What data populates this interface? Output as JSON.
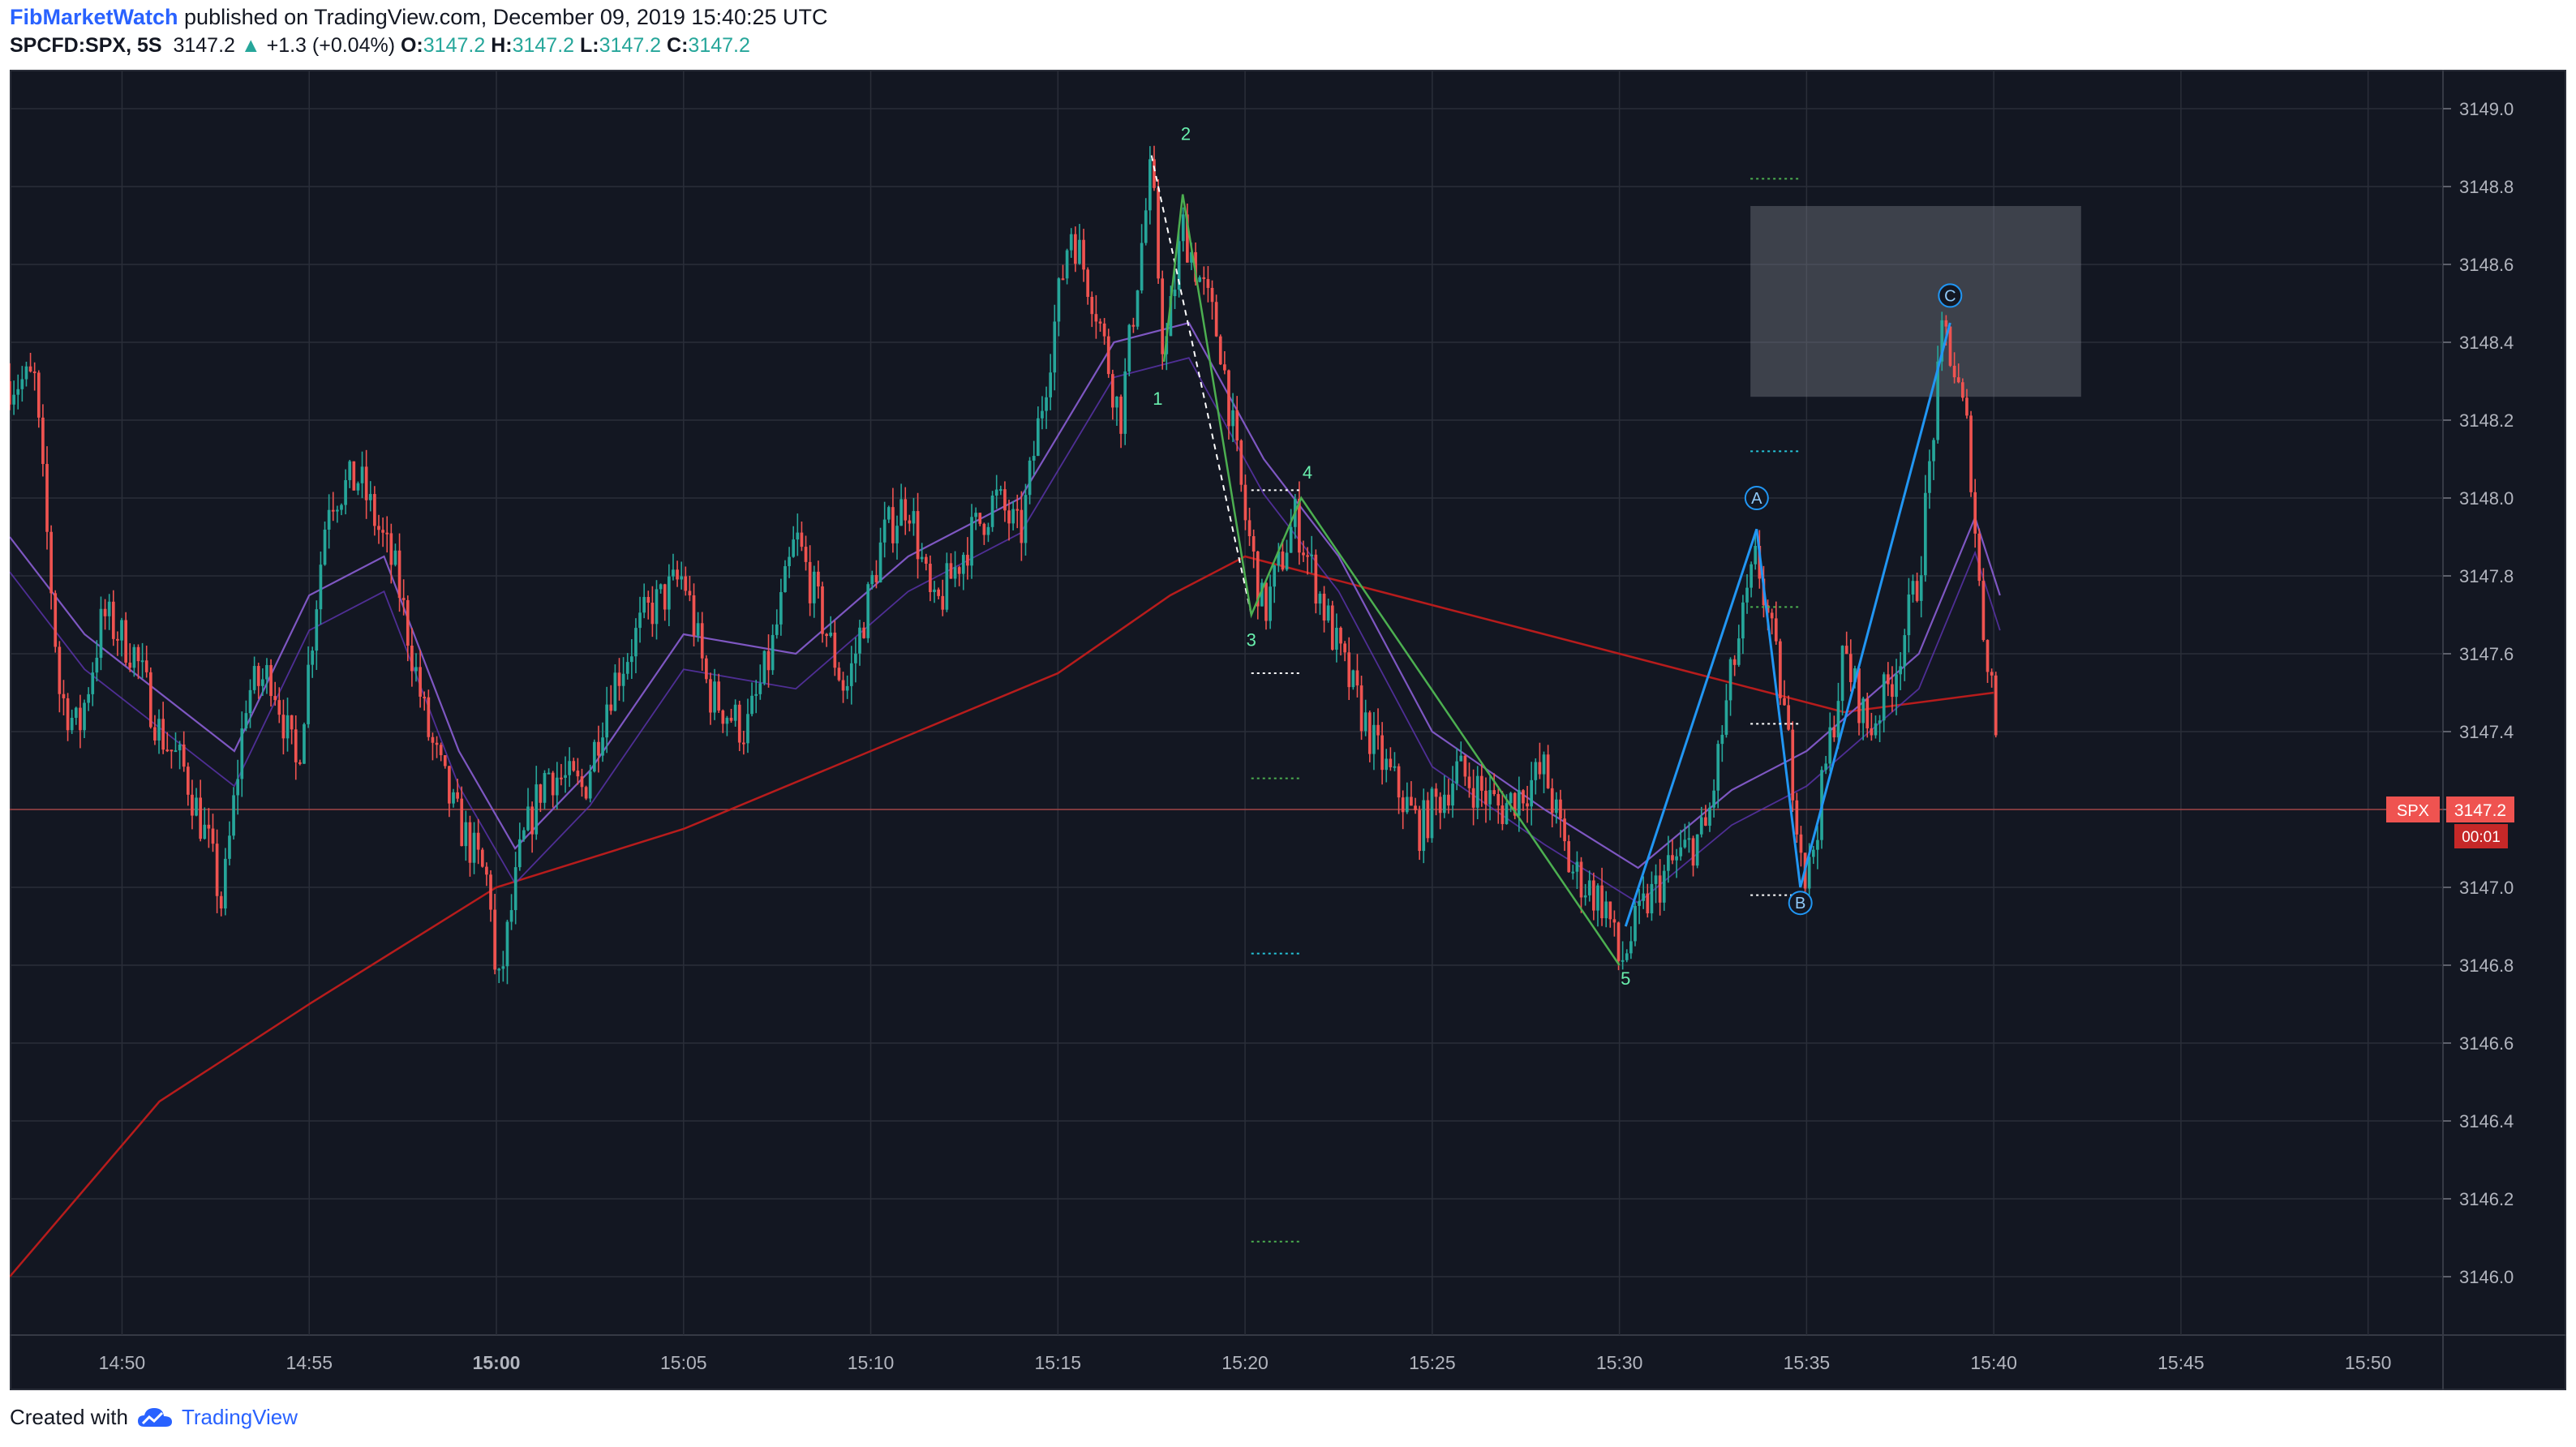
{
  "header": {
    "author": "FibMarketWatch",
    "published_text": " published on TradingView.com, December 09, 2019 15:40:25 UTC",
    "symbol": "SPCFD:SPX, 5S",
    "last": "3147.2",
    "change": "+1.3 (+0.04%)",
    "o_label": "O:",
    "o_value": "3147.2",
    "h_label": "H:",
    "h_value": "3147.2",
    "l_label": "L:",
    "l_value": "3147.2",
    "c_label": "C:",
    "c_value": "3147.2"
  },
  "footer": {
    "created_with": "Created with",
    "brand": "TradingView"
  },
  "price_tag": {
    "symbol": "SPX",
    "price": "3147.2",
    "countdown": "00:01"
  },
  "colors": {
    "background": "#131722",
    "grid": "#2a2e39",
    "up": "#26a69a",
    "down": "#ef5350",
    "ma_long": "#b71c1c",
    "ma_fast": "#7e57c2",
    "wave_green": "#4caf50",
    "wave_blue": "#2196f3",
    "axis_text": "#b2b5be"
  },
  "wave_labels": {
    "w1": "1",
    "w2": "2",
    "w3": "3",
    "w4": "4",
    "w5": "5",
    "wa": "A",
    "wb": "B",
    "wc": "C"
  },
  "chart_data": {
    "type": "candlestick",
    "interval": "5S",
    "x_ticks": [
      "14:50",
      "14:55",
      "15:00",
      "15:05",
      "15:10",
      "15:15",
      "15:20",
      "15:25",
      "15:30",
      "15:35",
      "15:40",
      "15:45",
      "15:50"
    ],
    "y_ticks": [
      "3149.0",
      "3148.8",
      "3148.6",
      "3148.4",
      "3148.2",
      "3148.0",
      "3147.8",
      "3147.6",
      "3147.4",
      "3147.2",
      "3147.0",
      "3146.8",
      "3146.6",
      "3146.4",
      "3146.2",
      "3146.0"
    ],
    "xlim": [
      "14:47",
      "15:52"
    ],
    "ylim": [
      3145.85,
      3149.1
    ],
    "last_price": 3147.2,
    "price_path": [
      [
        "14:47:00",
        3148.3
      ],
      [
        "14:47:40",
        3148.3
      ],
      [
        "14:48:20",
        3147.5
      ],
      [
        "14:48:50",
        3147.4
      ],
      [
        "14:49:30",
        3147.7
      ],
      [
        "14:50:20",
        3147.6
      ],
      [
        "14:51:00",
        3147.4
      ],
      [
        "14:51:40",
        3147.3
      ],
      [
        "14:52:20",
        3147.1
      ],
      [
        "14:52:40",
        3146.95
      ],
      [
        "14:53:20",
        3147.5
      ],
      [
        "14:54:00",
        3147.55
      ],
      [
        "14:54:40",
        3147.3
      ],
      [
        "14:55:30",
        3148.0
      ],
      [
        "14:56:20",
        3148.05
      ],
      [
        "14:57:20",
        3147.8
      ],
      [
        "14:58:10",
        3147.4
      ],
      [
        "14:58:50",
        3147.2
      ],
      [
        "14:59:50",
        3147.0
      ],
      [
        "15:00:00",
        3146.7
      ],
      [
        "15:00:40",
        3147.1
      ],
      [
        "15:01:20",
        3147.3
      ],
      [
        "15:02:20",
        3147.25
      ],
      [
        "15:03:00",
        3147.5
      ],
      [
        "15:04:00",
        3147.7
      ],
      [
        "15:05:00",
        3147.8
      ],
      [
        "15:05:40",
        3147.5
      ],
      [
        "15:06:40",
        3147.4
      ],
      [
        "15:07:20",
        3147.6
      ],
      [
        "15:08:00",
        3147.9
      ],
      [
        "15:08:40",
        3147.7
      ],
      [
        "15:09:20",
        3147.5
      ],
      [
        "15:10:20",
        3147.9
      ],
      [
        "15:11:00",
        3148.0
      ],
      [
        "15:11:40",
        3147.7
      ],
      [
        "15:12:40",
        3147.9
      ],
      [
        "15:13:20",
        3148.0
      ],
      [
        "15:14:00",
        3147.9
      ],
      [
        "15:14:30",
        3148.2
      ],
      [
        "15:15:20",
        3148.7
      ],
      [
        "15:16:00",
        3148.5
      ],
      [
        "15:16:40",
        3148.2
      ],
      [
        "15:17:10",
        3148.6
      ],
      [
        "15:17:30",
        3148.85
      ],
      [
        "15:17:50",
        3148.35
      ],
      [
        "15:18:20",
        3148.7
      ],
      [
        "15:19:20",
        3148.4
      ],
      [
        "15:20:00",
        3147.95
      ],
      [
        "15:20:30",
        3147.7
      ],
      [
        "15:21:20",
        3147.95
      ],
      [
        "15:22:30",
        3147.6
      ],
      [
        "15:23:30",
        3147.35
      ],
      [
        "15:24:40",
        3147.15
      ],
      [
        "15:25:40",
        3147.3
      ],
      [
        "15:26:50",
        3147.2
      ],
      [
        "15:28:00",
        3147.3
      ],
      [
        "15:28:40",
        3147.05
      ],
      [
        "15:29:40",
        3146.95
      ],
      [
        "15:30:00",
        3146.8
      ],
      [
        "15:30:40",
        3146.95
      ],
      [
        "15:31:20",
        3147.05
      ],
      [
        "15:32:20",
        3147.15
      ],
      [
        "15:33:00",
        3147.55
      ],
      [
        "15:33:40",
        3147.85
      ],
      [
        "15:34:20",
        3147.5
      ],
      [
        "15:35:00",
        3147.0
      ],
      [
        "15:35:30",
        3147.3
      ],
      [
        "15:36:00",
        3147.6
      ],
      [
        "15:36:40",
        3147.4
      ],
      [
        "15:37:20",
        3147.55
      ],
      [
        "15:38:00",
        3147.8
      ],
      [
        "15:38:40",
        3148.45
      ],
      [
        "15:39:20",
        3148.15
      ],
      [
        "15:39:40",
        3147.7
      ],
      [
        "15:40:00",
        3147.5
      ],
      [
        "15:40:10",
        3147.2
      ]
    ],
    "moving_averages": [
      {
        "role": "long",
        "points": [
          [
            "14:47:00",
            3146.0
          ],
          [
            "14:51:00",
            3146.45
          ],
          [
            "14:55:00",
            3146.7
          ],
          [
            "15:00:00",
            3147.0
          ],
          [
            "15:05:00",
            3147.15
          ],
          [
            "15:10:00",
            3147.35
          ],
          [
            "15:15:00",
            3147.55
          ],
          [
            "15:18:00",
            3147.75
          ],
          [
            "15:20:00",
            3147.85
          ],
          [
            "15:24:00",
            3147.75
          ],
          [
            "15:28:00",
            3147.65
          ],
          [
            "15:32:00",
            3147.55
          ],
          [
            "15:36:00",
            3147.45
          ],
          [
            "15:40:00",
            3147.5
          ]
        ]
      },
      {
        "role": "fast",
        "points": [
          [
            "14:47:00",
            3147.9
          ],
          [
            "14:49:00",
            3147.65
          ],
          [
            "14:51:00",
            3147.5
          ],
          [
            "14:53:00",
            3147.35
          ],
          [
            "14:55:00",
            3147.75
          ],
          [
            "14:57:00",
            3147.85
          ],
          [
            "14:59:00",
            3147.35
          ],
          [
            "15:00:30",
            3147.1
          ],
          [
            "15:02:30",
            3147.3
          ],
          [
            "15:05:00",
            3147.65
          ],
          [
            "15:08:00",
            3147.6
          ],
          [
            "15:11:00",
            3147.85
          ],
          [
            "15:14:00",
            3148.0
          ],
          [
            "15:16:30",
            3148.4
          ],
          [
            "15:18:30",
            3148.45
          ],
          [
            "15:20:30",
            3148.1
          ],
          [
            "15:22:30",
            3147.85
          ],
          [
            "15:25:00",
            3147.4
          ],
          [
            "15:28:00",
            3147.2
          ],
          [
            "15:30:30",
            3147.05
          ],
          [
            "15:33:00",
            3147.25
          ],
          [
            "15:35:00",
            3147.35
          ],
          [
            "15:38:00",
            3147.6
          ],
          [
            "15:39:30",
            3147.95
          ],
          [
            "15:40:10",
            3147.75
          ]
        ]
      }
    ],
    "waves": {
      "impulse": [
        [
          "15:17:30",
          3148.88
        ],
        [
          "15:17:50",
          3148.35
        ],
        [
          "15:18:20",
          3148.78
        ],
        [
          "15:20:10",
          3147.7
        ],
        [
          "15:21:30",
          3148.0
        ],
        [
          "15:30:00",
          3146.8
        ]
      ],
      "correction": [
        [
          "15:30:10",
          3146.9
        ],
        [
          "15:33:40",
          3147.92
        ],
        [
          "15:34:50",
          3147.0
        ],
        [
          "15:38:50",
          3148.45
        ]
      ]
    },
    "target_box": {
      "x": [
        "15:33:30",
        "15:42:20"
      ],
      "y": [
        3148.26,
        3148.75
      ]
    }
  }
}
